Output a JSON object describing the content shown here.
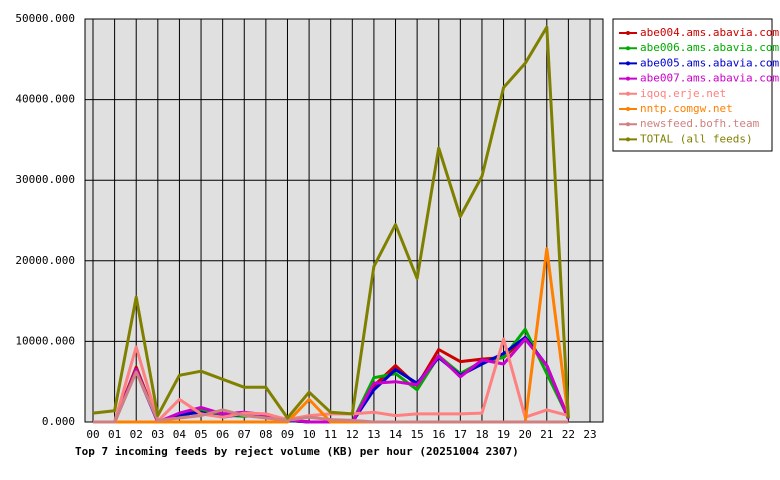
{
  "chart_data": {
    "type": "line",
    "xlabel": "Top 7 incoming feeds by reject volume (KB) per hour (20251004 2307)",
    "categories": [
      "00",
      "01",
      "02",
      "03",
      "04",
      "05",
      "06",
      "07",
      "08",
      "09",
      "10",
      "11",
      "12",
      "13",
      "14",
      "15",
      "16",
      "17",
      "18",
      "19",
      "20",
      "21",
      "22",
      "23"
    ],
    "ylim": [
      0,
      50000
    ],
    "yticks": [
      {
        "value": 0,
        "label": "0.000"
      },
      {
        "value": 10000,
        "label": "10000.000"
      },
      {
        "value": 20000,
        "label": "20000.000"
      },
      {
        "value": 30000,
        "label": "30000.000"
      },
      {
        "value": 40000,
        "label": "40000.000"
      },
      {
        "value": 50000,
        "label": "50000.000"
      }
    ],
    "grid": true,
    "legend": "upper-right",
    "series": [
      {
        "name": "abe004.ams.abavia.com",
        "color": "#cc0000",
        "values": [
          0,
          0,
          6800,
          0,
          800,
          1500,
          800,
          800,
          1000,
          200,
          0,
          0,
          0,
          4500,
          7000,
          4500,
          9000,
          7500,
          7800,
          8000,
          10500,
          7000,
          500,
          null
        ]
      },
      {
        "name": "abe006.ams.abavia.com",
        "color": "#00aa00",
        "values": [
          0,
          0,
          6500,
          0,
          700,
          1400,
          900,
          700,
          900,
          200,
          0,
          0,
          0,
          5500,
          6000,
          4000,
          8200,
          6000,
          7500,
          8000,
          11500,
          6000,
          500,
          null
        ]
      },
      {
        "name": "abe005.ams.abavia.com",
        "color": "#0000cc",
        "values": [
          0,
          0,
          6300,
          0,
          900,
          1200,
          600,
          1000,
          900,
          200,
          0,
          0,
          0,
          4000,
          6500,
          4800,
          8000,
          5800,
          7200,
          8500,
          10500,
          7000,
          400,
          null
        ]
      },
      {
        "name": "abe007.ams.abavia.com",
        "color": "#cc00cc",
        "values": [
          0,
          0,
          6500,
          0,
          1100,
          1800,
          1000,
          1200,
          900,
          300,
          0,
          0,
          0,
          4800,
          5000,
          4600,
          8200,
          5600,
          7700,
          7200,
          10300,
          7000,
          400,
          null
        ]
      },
      {
        "name": "iqoq.erje.net",
        "color": "#ff8080",
        "values": [
          0,
          0,
          9300,
          100,
          2800,
          1000,
          600,
          1100,
          1000,
          300,
          800,
          1000,
          1000,
          1200,
          800,
          1000,
          1000,
          1000,
          1100,
          10300,
          600,
          1500,
          800,
          null
        ]
      },
      {
        "name": "nntp.comgw.net",
        "color": "#ff8000",
        "values": [
          0,
          0,
          0,
          0,
          0,
          0,
          0,
          0,
          0,
          0,
          2800,
          0,
          0,
          0,
          0,
          0,
          0,
          0,
          0,
          0,
          0,
          21500,
          500,
          null
        ]
      },
      {
        "name": "newsfeed.bofh.team",
        "color": "#d08080",
        "values": [
          0,
          0,
          6200,
          200,
          500,
          800,
          1500,
          800,
          500,
          200,
          600,
          300,
          200,
          0,
          0,
          0,
          0,
          0,
          0,
          0,
          0,
          0,
          0,
          null
        ]
      },
      {
        "name": "TOTAL (all feeds)",
        "color": "#808000",
        "values": [
          1100,
          1400,
          15500,
          800,
          5800,
          6300,
          5300,
          4300,
          4300,
          500,
          3700,
          1200,
          1000,
          19300,
          24500,
          17800,
          34000,
          25500,
          30500,
          41500,
          44500,
          49000,
          500,
          null
        ]
      }
    ]
  }
}
